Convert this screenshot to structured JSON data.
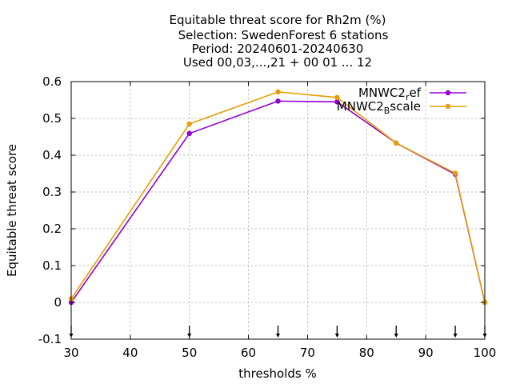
{
  "chart_data": {
    "type": "line",
    "title_lines": [
      "Equitable threat score  for Rh2m (%)",
      "Selection: SwedenForest      6 stations",
      "Period: 20240601-20240630",
      "Used 00,03,...,21 + 00 01 ... 12"
    ],
    "xlabel": "thresholds %",
    "ylabel": "Equitable threat score",
    "xlim": [
      30,
      100
    ],
    "ylim": [
      -0.1,
      0.6
    ],
    "xticks": [
      30,
      40,
      50,
      60,
      70,
      80,
      90,
      100
    ],
    "yticks": [
      -0.1,
      0,
      0.1,
      0.2,
      0.3,
      0.4,
      0.5,
      0.6
    ],
    "xtick_labels": [
      "30",
      "40",
      "50",
      "60",
      "70",
      "80",
      "90",
      "100"
    ],
    "ytick_labels": [
      "-0.1",
      "0",
      "0.1",
      "0.2",
      "0.3",
      "0.4",
      "0.5",
      "0.6"
    ],
    "grid": true,
    "legend_position": "top-right",
    "threshold_markers": [
      30,
      50,
      65,
      75,
      85,
      95,
      100
    ],
    "series": [
      {
        "name": "MNWC2_ref",
        "legend_main": "MNWC2",
        "legend_sub": "r",
        "legend_rest": "ef",
        "color": "#9400d3",
        "x": [
          30,
          50,
          65,
          75,
          85,
          95,
          100
        ],
        "y": [
          0.0,
          0.459,
          0.547,
          0.545,
          0.433,
          0.348,
          0.0
        ]
      },
      {
        "name": "MNWC2_Bscale",
        "legend_main": "MNWC2",
        "legend_sub": "B",
        "legend_rest": "scale",
        "color": "#e69f00",
        "x": [
          30,
          50,
          65,
          75,
          85,
          95,
          100
        ],
        "y": [
          0.01,
          0.485,
          0.572,
          0.557,
          0.433,
          0.351,
          0.0
        ]
      }
    ]
  }
}
